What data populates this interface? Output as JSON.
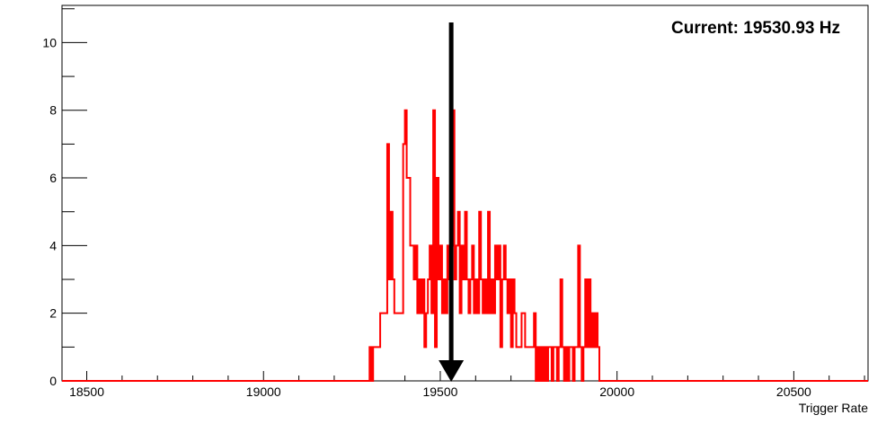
{
  "chart_data": {
    "type": "histogram",
    "title": "",
    "xlabel": "Trigger Rate",
    "ylabel": "",
    "xlim": [
      18430,
      20710
    ],
    "ylim": [
      0,
      11.1
    ],
    "x_ticks": [
      18500,
      19000,
      19500,
      20000,
      20500
    ],
    "y_ticks": [
      0,
      2,
      4,
      6,
      8,
      10
    ],
    "bin_width": 5,
    "annotation": "Current: 19530.93 Hz",
    "marker_value": 19530.93,
    "line_color": "#ff0000",
    "marker_color": "#000000",
    "grid": false,
    "series": [
      {
        "bins": [
          [
            19300,
            1
          ],
          [
            19305,
            0
          ],
          [
            19310,
            1
          ],
          [
            19315,
            1
          ],
          [
            19320,
            1
          ],
          [
            19325,
            1
          ],
          [
            19330,
            2
          ],
          [
            19335,
            2
          ],
          [
            19340,
            2
          ],
          [
            19345,
            2
          ],
          [
            19350,
            7
          ],
          [
            19355,
            3
          ],
          [
            19360,
            5
          ],
          [
            19365,
            3
          ],
          [
            19370,
            2
          ],
          [
            19375,
            2
          ],
          [
            19380,
            2
          ],
          [
            19385,
            2
          ],
          [
            19390,
            2
          ],
          [
            19395,
            7
          ],
          [
            19400,
            8
          ],
          [
            19405,
            6
          ],
          [
            19410,
            6
          ],
          [
            19415,
            4
          ],
          [
            19420,
            4
          ],
          [
            19425,
            3
          ],
          [
            19430,
            4
          ],
          [
            19435,
            2
          ],
          [
            19440,
            3
          ],
          [
            19445,
            2
          ],
          [
            19450,
            3
          ],
          [
            19455,
            1
          ],
          [
            19460,
            2
          ],
          [
            19465,
            3
          ],
          [
            19470,
            4
          ],
          [
            19475,
            2
          ],
          [
            19480,
            8
          ],
          [
            19485,
            1
          ],
          [
            19490,
            6
          ],
          [
            19495,
            3
          ],
          [
            19500,
            4
          ],
          [
            19505,
            2
          ],
          [
            19510,
            3
          ],
          [
            19515,
            2
          ],
          [
            19520,
            4
          ],
          [
            19525,
            3
          ],
          [
            19530,
            4
          ],
          [
            19535,
            8
          ],
          [
            19540,
            3
          ],
          [
            19545,
            4
          ],
          [
            19550,
            5
          ],
          [
            19555,
            2
          ],
          [
            19560,
            4
          ],
          [
            19565,
            3
          ],
          [
            19570,
            5
          ],
          [
            19575,
            3
          ],
          [
            19580,
            2
          ],
          [
            19585,
            3
          ],
          [
            19590,
            4
          ],
          [
            19595,
            2
          ],
          [
            19600,
            3
          ],
          [
            19605,
            2
          ],
          [
            19610,
            5
          ],
          [
            19615,
            3
          ],
          [
            19620,
            2
          ],
          [
            19625,
            3
          ],
          [
            19630,
            2
          ],
          [
            19635,
            5
          ],
          [
            19640,
            2
          ],
          [
            19645,
            3
          ],
          [
            19650,
            2
          ],
          [
            19655,
            4
          ],
          [
            19660,
            3
          ],
          [
            19665,
            4
          ],
          [
            19670,
            1
          ],
          [
            19675,
            3
          ],
          [
            19680,
            4
          ],
          [
            19685,
            3
          ],
          [
            19690,
            2
          ],
          [
            19695,
            3
          ],
          [
            19700,
            1
          ],
          [
            19705,
            3
          ],
          [
            19710,
            2
          ],
          [
            19715,
            1
          ],
          [
            19720,
            1
          ],
          [
            19725,
            1
          ],
          [
            19730,
            2
          ],
          [
            19735,
            2
          ],
          [
            19740,
            1
          ],
          [
            19745,
            1
          ],
          [
            19750,
            1
          ],
          [
            19755,
            1
          ],
          [
            19760,
            1
          ],
          [
            19765,
            2
          ],
          [
            19770,
            0
          ],
          [
            19775,
            1
          ],
          [
            19780,
            0
          ],
          [
            19785,
            1
          ],
          [
            19790,
            0
          ],
          [
            19795,
            1
          ],
          [
            19800,
            0
          ],
          [
            19805,
            1
          ],
          [
            19810,
            1
          ],
          [
            19815,
            0
          ],
          [
            19820,
            1
          ],
          [
            19825,
            1
          ],
          [
            19830,
            0
          ],
          [
            19835,
            1
          ],
          [
            19840,
            3
          ],
          [
            19845,
            1
          ],
          [
            19850,
            0
          ],
          [
            19855,
            1
          ],
          [
            19860,
            0
          ],
          [
            19865,
            1
          ],
          [
            19870,
            1
          ],
          [
            19875,
            0
          ],
          [
            19880,
            1
          ],
          [
            19885,
            1
          ],
          [
            19890,
            4
          ],
          [
            19895,
            1
          ],
          [
            19900,
            0
          ],
          [
            19905,
            1
          ],
          [
            19910,
            3
          ],
          [
            19915,
            1
          ],
          [
            19920,
            3
          ],
          [
            19925,
            1
          ],
          [
            19930,
            2
          ],
          [
            19935,
            1
          ],
          [
            19940,
            2
          ],
          [
            19945,
            1
          ],
          [
            19950,
            0
          ]
        ]
      }
    ]
  }
}
